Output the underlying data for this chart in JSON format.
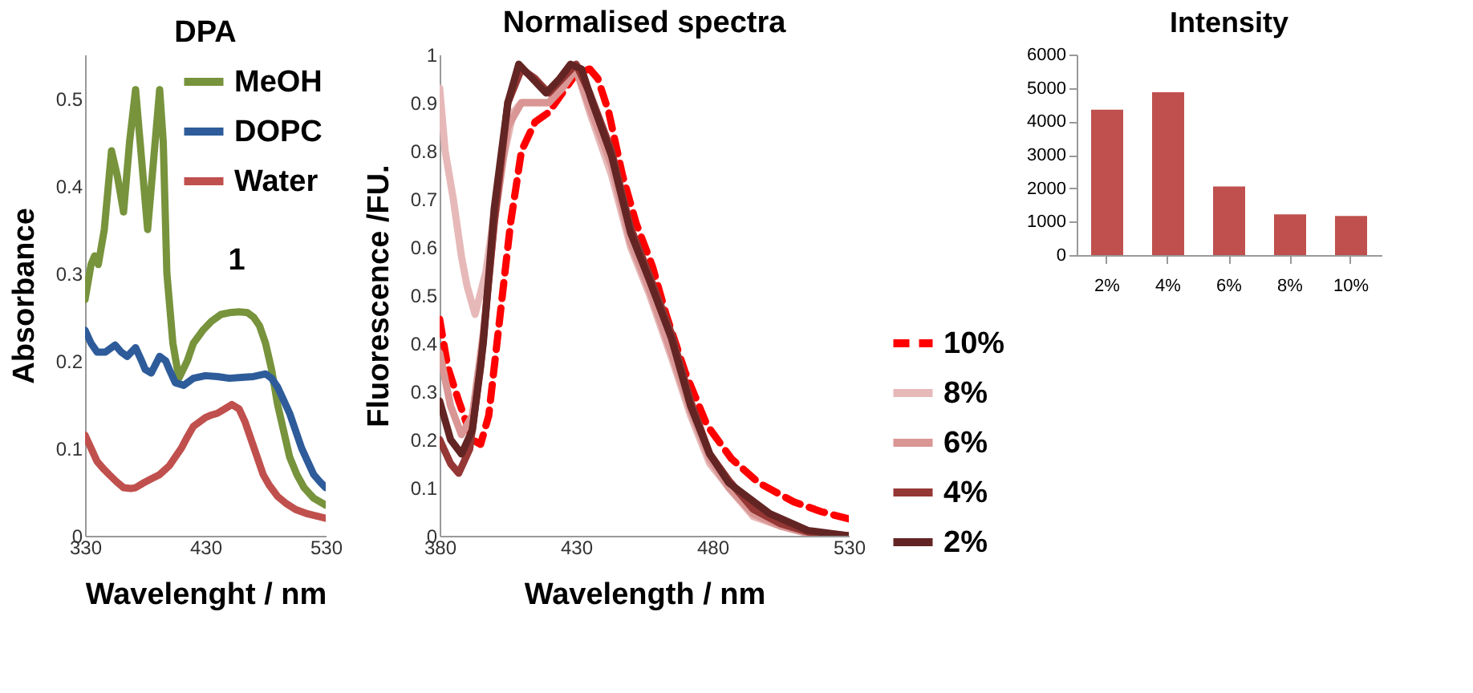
{
  "chart_data": [
    {
      "type": "line",
      "title": "DPA",
      "xlabel": "Wavelenght / nm",
      "ylabel": "Absorbance",
      "xlim": [
        330,
        530
      ],
      "ylim": [
        0,
        0.55
      ],
      "xticks": [
        330,
        430,
        530
      ],
      "yticks": [
        0,
        0.1,
        0.2,
        0.3,
        0.4,
        0.5
      ],
      "legend": "top right",
      "annotations": [
        "1"
      ],
      "series": [
        {
          "name": "MeOH",
          "color": "#77933c",
          "x": [
            330,
            335,
            338,
            341,
            346,
            352,
            357,
            362,
            367,
            372,
            377,
            382,
            387,
            392,
            395,
            398,
            403,
            408,
            415,
            420,
            428,
            435,
            443,
            450,
            458,
            465,
            470,
            475,
            480,
            485,
            490,
            495,
            500,
            506,
            512,
            520,
            530
          ],
          "values": [
            0.27,
            0.31,
            0.32,
            0.31,
            0.35,
            0.44,
            0.41,
            0.37,
            0.45,
            0.51,
            0.43,
            0.35,
            0.43,
            0.51,
            0.45,
            0.3,
            0.22,
            0.18,
            0.2,
            0.22,
            0.235,
            0.245,
            0.253,
            0.255,
            0.256,
            0.255,
            0.25,
            0.24,
            0.22,
            0.19,
            0.15,
            0.12,
            0.09,
            0.07,
            0.055,
            0.043,
            0.035
          ]
        },
        {
          "name": "DOPC",
          "color": "#2e5c9a",
          "x": [
            330,
            335,
            340,
            347,
            355,
            360,
            365,
            372,
            377,
            380,
            385,
            392,
            397,
            400,
            405,
            412,
            420,
            430,
            440,
            450,
            460,
            470,
            480,
            485,
            490,
            495,
            500,
            505,
            510,
            515,
            520,
            525,
            530
          ],
          "values": [
            0.235,
            0.22,
            0.21,
            0.21,
            0.218,
            0.21,
            0.205,
            0.215,
            0.2,
            0.19,
            0.186,
            0.205,
            0.2,
            0.19,
            0.175,
            0.172,
            0.18,
            0.183,
            0.182,
            0.18,
            0.181,
            0.182,
            0.185,
            0.18,
            0.17,
            0.155,
            0.14,
            0.12,
            0.1,
            0.085,
            0.07,
            0.062,
            0.055
          ]
        },
        {
          "name": "Water",
          "color": "#c0504d",
          "x": [
            330,
            335,
            340,
            345,
            350,
            356,
            362,
            368,
            372,
            378,
            385,
            392,
            400,
            405,
            410,
            415,
            420,
            425,
            430,
            435,
            440,
            446,
            452,
            458,
            463,
            468,
            473,
            478,
            483,
            490,
            497,
            505,
            515,
            530
          ],
          "values": [
            0.115,
            0.1,
            0.085,
            0.077,
            0.07,
            0.062,
            0.055,
            0.054,
            0.055,
            0.06,
            0.065,
            0.07,
            0.08,
            0.09,
            0.1,
            0.113,
            0.125,
            0.13,
            0.135,
            0.138,
            0.14,
            0.145,
            0.15,
            0.145,
            0.13,
            0.11,
            0.09,
            0.07,
            0.058,
            0.045,
            0.037,
            0.03,
            0.025,
            0.02
          ]
        }
      ]
    },
    {
      "type": "line",
      "title": "Normalised spectra",
      "xlabel": "Wavelength / nm",
      "ylabel": "Fluorescence /FU.",
      "xlim": [
        380,
        530
      ],
      "ylim": [
        0,
        1
      ],
      "xticks": [
        380,
        430,
        480,
        530
      ],
      "yticks": [
        0,
        0.1,
        0.2,
        0.3,
        0.4,
        0.5,
        0.6,
        0.7,
        0.8,
        0.9,
        1
      ],
      "legend": "bottom right",
      "series": [
        {
          "name": "10%",
          "color": "#ff0000",
          "line_style": "dashed",
          "x": [
            380,
            383,
            387,
            392,
            395,
            398,
            402,
            406,
            410,
            415,
            420,
            425,
            430,
            435,
            438,
            442,
            447,
            452,
            458,
            463,
            470,
            478,
            487,
            497,
            510,
            520,
            530
          ],
          "values": [
            0.45,
            0.35,
            0.28,
            0.2,
            0.19,
            0.25,
            0.45,
            0.65,
            0.8,
            0.86,
            0.88,
            0.92,
            0.96,
            0.97,
            0.95,
            0.88,
            0.75,
            0.65,
            0.56,
            0.46,
            0.34,
            0.23,
            0.16,
            0.11,
            0.07,
            0.05,
            0.035
          ]
        },
        {
          "name": "8%",
          "color": "#e6b9b8",
          "x": [
            380,
            382,
            385,
            388,
            390,
            393,
            397,
            402,
            407,
            410,
            415,
            420,
            425,
            430,
            435,
            443,
            450,
            457,
            465,
            472,
            479,
            486,
            495,
            505,
            515,
            530
          ],
          "values": [
            0.93,
            0.8,
            0.7,
            0.58,
            0.52,
            0.46,
            0.55,
            0.75,
            0.88,
            0.9,
            0.9,
            0.9,
            0.94,
            0.97,
            0.88,
            0.75,
            0.6,
            0.5,
            0.37,
            0.25,
            0.15,
            0.1,
            0.04,
            0.02,
            0.005,
            0
          ]
        },
        {
          "name": "6%",
          "color": "#d99694",
          "x": [
            380,
            384,
            388,
            392,
            396,
            400,
            405,
            410,
            415,
            420,
            425,
            430,
            435,
            443,
            450,
            457,
            465,
            472,
            479,
            486,
            495,
            505,
            515,
            530
          ],
          "values": [
            0.38,
            0.27,
            0.21,
            0.25,
            0.42,
            0.65,
            0.85,
            0.9,
            0.9,
            0.9,
            0.93,
            0.97,
            0.89,
            0.77,
            0.61,
            0.51,
            0.38,
            0.26,
            0.16,
            0.1,
            0.045,
            0.02,
            0.005,
            0
          ]
        },
        {
          "name": "4%",
          "color": "#953735",
          "x": [
            380,
            384,
            387,
            391,
            395,
            400,
            405,
            410,
            415,
            420,
            425,
            430,
            435,
            443,
            450,
            457,
            465,
            472,
            479,
            486,
            495,
            505,
            515,
            530
          ],
          "values": [
            0.2,
            0.15,
            0.13,
            0.18,
            0.35,
            0.65,
            0.9,
            0.97,
            0.95,
            0.92,
            0.95,
            0.98,
            0.92,
            0.8,
            0.64,
            0.54,
            0.42,
            0.28,
            0.17,
            0.115,
            0.055,
            0.025,
            0.008,
            0
          ]
        },
        {
          "name": "2%",
          "color": "#632523",
          "x": [
            380,
            384,
            388,
            392,
            396,
            400,
            405,
            409,
            414,
            419,
            424,
            428,
            432,
            436,
            443,
            450,
            457,
            465,
            472,
            479,
            486,
            501,
            515,
            530
          ],
          "values": [
            0.28,
            0.2,
            0.17,
            0.22,
            0.4,
            0.68,
            0.9,
            0.98,
            0.95,
            0.92,
            0.95,
            0.98,
            0.97,
            0.9,
            0.79,
            0.63,
            0.53,
            0.41,
            0.27,
            0.17,
            0.11,
            0.046,
            0.011,
            0
          ]
        }
      ]
    },
    {
      "type": "bar",
      "title": "Intensity",
      "categories": [
        "2%",
        "4%",
        "6%",
        "8%",
        "10%"
      ],
      "values": [
        4350,
        4870,
        2050,
        1220,
        1170
      ],
      "color": "#c0504d",
      "ylim": [
        0,
        6000
      ],
      "yticks": [
        0,
        1000,
        2000,
        3000,
        4000,
        5000,
        6000
      ]
    }
  ]
}
